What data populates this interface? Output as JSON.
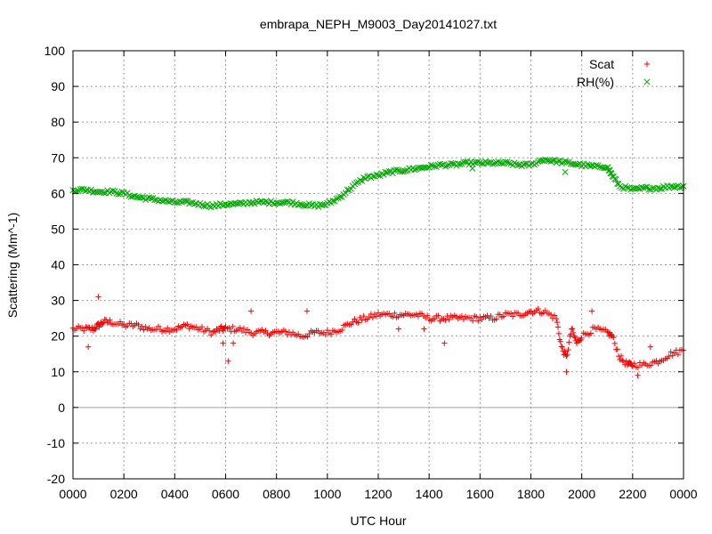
{
  "chart_data": {
    "type": "scatter",
    "title": "embrapa_NEPH_M9003_Day20141027.txt",
    "xlabel": "UTC Hour",
    "ylabel": "Scattering (Mm^-1)",
    "xlim": [
      0,
      2400
    ],
    "ylim": [
      -20,
      100
    ],
    "x_ticks": [
      "0000",
      "0200",
      "0400",
      "0600",
      "0800",
      "1000",
      "1200",
      "1400",
      "1600",
      "1800",
      "2000",
      "2200",
      "0000"
    ],
    "y_ticks": [
      -20,
      -10,
      0,
      10,
      20,
      30,
      40,
      50,
      60,
      70,
      80,
      90,
      100
    ],
    "grid": true,
    "zero_line": true,
    "legend_position": "top-right",
    "series": [
      {
        "name": "Scat",
        "color": "#ff0000",
        "marker": "+",
        "x": [
          0,
          50,
          80,
          100,
          120,
          150,
          200,
          250,
          300,
          350,
          400,
          450,
          500,
          550,
          580,
          600,
          650,
          700,
          750,
          800,
          850,
          900,
          950,
          1000,
          1050,
          1100,
          1150,
          1200,
          1250,
          1300,
          1350,
          1400,
          1450,
          1500,
          1550,
          1600,
          1650,
          1700,
          1750,
          1800,
          1850,
          1900,
          1920,
          1940,
          1960,
          1980,
          2000,
          2050,
          2100,
          2120,
          2150,
          2180,
          2200,
          2250,
          2300,
          2350,
          2400
        ],
        "y": [
          22,
          22,
          22,
          23,
          24,
          24,
          23,
          23,
          22,
          22,
          22,
          23,
          22,
          21,
          22,
          22,
          22,
          21,
          21,
          21,
          21,
          20,
          21,
          21,
          22,
          24,
          25,
          26,
          26,
          26,
          26,
          25,
          25,
          25,
          25,
          25,
          25,
          26,
          26,
          27,
          27,
          25,
          17,
          14,
          22,
          18,
          20,
          22,
          21,
          20,
          14,
          12,
          12,
          12,
          13,
          15,
          16
        ],
        "outliers": [
          [
            60,
            17
          ],
          [
            100,
            31
          ],
          [
            590,
            18
          ],
          [
            610,
            13
          ],
          [
            630,
            18
          ],
          [
            700,
            27
          ],
          [
            920,
            27
          ],
          [
            1280,
            22
          ],
          [
            1380,
            22
          ],
          [
            1460,
            18
          ],
          [
            1940,
            10
          ],
          [
            2040,
            27
          ],
          [
            2220,
            9
          ],
          [
            2270,
            17
          ]
        ]
      },
      {
        "name": "RH(%)",
        "color": "#00aa00",
        "marker": "x",
        "x": [
          0,
          50,
          100,
          150,
          200,
          250,
          300,
          350,
          400,
          450,
          500,
          550,
          600,
          650,
          700,
          750,
          800,
          850,
          900,
          950,
          1000,
          1050,
          1100,
          1150,
          1200,
          1250,
          1300,
          1350,
          1400,
          1450,
          1500,
          1550,
          1600,
          1650,
          1700,
          1750,
          1800,
          1850,
          1900,
          1950,
          2000,
          2050,
          2100,
          2120,
          2150,
          2200,
          2250,
          2300,
          2350,
          2400
        ],
        "y": [
          61,
          61,
          60.5,
          60.5,
          60,
          59,
          58.5,
          58,
          57.5,
          57.5,
          57,
          56.5,
          57,
          57,
          57.5,
          57.5,
          57.5,
          57.5,
          57,
          56.5,
          57,
          59,
          62,
          64.5,
          65,
          66,
          66.5,
          67,
          67.5,
          68,
          68,
          68.5,
          68.5,
          68.5,
          68.5,
          68,
          68,
          69.5,
          69,
          68.5,
          68,
          67.5,
          67.5,
          65,
          62,
          61,
          61.5,
          61.5,
          62,
          62
        ],
        "outliers": [
          [
            1935,
            66
          ],
          [
            1570,
            67
          ]
        ]
      }
    ]
  }
}
